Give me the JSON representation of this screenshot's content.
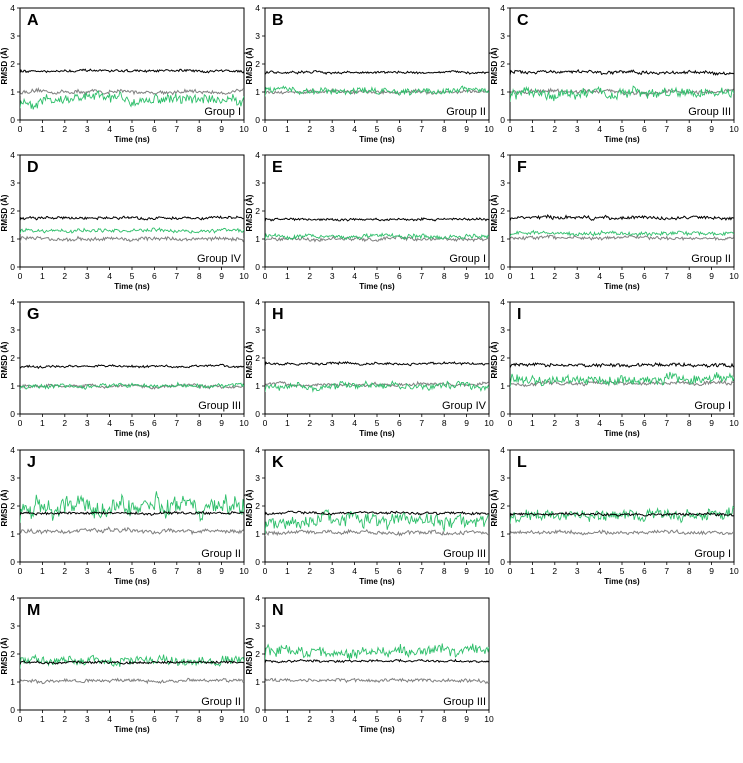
{
  "colors": {
    "black_series": "#000000",
    "gray_series": "#808080",
    "green_series": "#2fbf6b"
  },
  "chart_data": [
    {
      "panel": "A",
      "group_label": "Group I",
      "type": "line",
      "xlabel": "Time (ns)",
      "ylabel": "RMSD (Å)",
      "xlim": [
        0,
        10
      ],
      "ylim": [
        0,
        4
      ],
      "x_ticks": [
        0,
        1,
        2,
        3,
        4,
        5,
        6,
        7,
        8,
        9,
        10
      ],
      "y_ticks": [
        0,
        1,
        2,
        3,
        4
      ],
      "series": [
        {
          "color": "black",
          "mean": 1.75,
          "noise": 0.05
        },
        {
          "color": "gray",
          "mean": 1.0,
          "noise": 0.08
        },
        {
          "color": "green",
          "mean": 0.75,
          "noise": 0.22
        }
      ]
    },
    {
      "panel": "B",
      "group_label": "Group II",
      "type": "line",
      "xlabel": "Time (ns)",
      "ylabel": "RMSD (Å)",
      "xlim": [
        0,
        10
      ],
      "ylim": [
        0,
        4
      ],
      "x_ticks": [
        0,
        1,
        2,
        3,
        4,
        5,
        6,
        7,
        8,
        9,
        10
      ],
      "y_ticks": [
        0,
        1,
        2,
        3,
        4
      ],
      "series": [
        {
          "color": "black",
          "mean": 1.7,
          "noise": 0.05
        },
        {
          "color": "gray",
          "mean": 1.0,
          "noise": 0.07
        },
        {
          "color": "green",
          "mean": 1.05,
          "noise": 0.14
        }
      ]
    },
    {
      "panel": "C",
      "group_label": "Group III",
      "type": "line",
      "xlabel": "Time (ns)",
      "ylabel": "RMSD (Å)",
      "xlim": [
        0,
        10
      ],
      "ylim": [
        0,
        4
      ],
      "x_ticks": [
        0,
        1,
        2,
        3,
        4,
        5,
        6,
        7,
        8,
        9,
        10
      ],
      "y_ticks": [
        0,
        1,
        2,
        3,
        4
      ],
      "series": [
        {
          "color": "black",
          "mean": 1.7,
          "noise": 0.07
        },
        {
          "color": "gray",
          "mean": 1.0,
          "noise": 0.08
        },
        {
          "color": "green",
          "mean": 0.95,
          "noise": 0.2
        }
      ]
    },
    {
      "panel": "D",
      "group_label": "Group IV",
      "type": "line",
      "xlabel": "Time (ns)",
      "ylabel": "RMSD (Å)",
      "xlim": [
        0,
        10
      ],
      "ylim": [
        0,
        4
      ],
      "x_ticks": [
        0,
        1,
        2,
        3,
        4,
        5,
        6,
        7,
        8,
        9,
        10
      ],
      "y_ticks": [
        0,
        1,
        2,
        3,
        4
      ],
      "series": [
        {
          "color": "black",
          "mean": 1.75,
          "noise": 0.06
        },
        {
          "color": "gray",
          "mean": 1.0,
          "noise": 0.08
        },
        {
          "color": "green",
          "mean": 1.3,
          "noise": 0.08
        }
      ]
    },
    {
      "panel": "E",
      "group_label": "Group I",
      "type": "line",
      "xlabel": "Time (ns)",
      "ylabel": "RMSD (Å)",
      "xlim": [
        0,
        10
      ],
      "ylim": [
        0,
        4
      ],
      "x_ticks": [
        0,
        1,
        2,
        3,
        4,
        5,
        6,
        7,
        8,
        9,
        10
      ],
      "y_ticks": [
        0,
        1,
        2,
        3,
        4
      ],
      "series": [
        {
          "color": "black",
          "mean": 1.7,
          "noise": 0.05
        },
        {
          "color": "gray",
          "mean": 1.0,
          "noise": 0.07
        },
        {
          "color": "green",
          "mean": 1.1,
          "noise": 0.09
        }
      ]
    },
    {
      "panel": "F",
      "group_label": "Group II",
      "type": "line",
      "xlabel": "Time (ns)",
      "ylabel": "RMSD (Å)",
      "xlim": [
        0,
        10
      ],
      "ylim": [
        0,
        4
      ],
      "x_ticks": [
        0,
        1,
        2,
        3,
        4,
        5,
        6,
        7,
        8,
        9,
        10
      ],
      "y_ticks": [
        0,
        1,
        2,
        3,
        4
      ],
      "series": [
        {
          "color": "black",
          "mean": 1.75,
          "noise": 0.07
        },
        {
          "color": "gray",
          "mean": 1.05,
          "noise": 0.07
        },
        {
          "color": "green",
          "mean": 1.2,
          "noise": 0.08
        }
      ]
    },
    {
      "panel": "G",
      "group_label": "Group III",
      "type": "line",
      "xlabel": "Time (ns)",
      "ylabel": "RMSD (Å)",
      "xlim": [
        0,
        10
      ],
      "ylim": [
        0,
        4
      ],
      "x_ticks": [
        0,
        1,
        2,
        3,
        4,
        5,
        6,
        7,
        8,
        9,
        10
      ],
      "y_ticks": [
        0,
        1,
        2,
        3,
        4
      ],
      "series": [
        {
          "color": "black",
          "mean": 1.7,
          "noise": 0.05
        },
        {
          "color": "gray",
          "mean": 1.0,
          "noise": 0.07
        },
        {
          "color": "green",
          "mean": 1.0,
          "noise": 0.09
        }
      ]
    },
    {
      "panel": "H",
      "group_label": "Group IV",
      "type": "line",
      "xlabel": "Time (ns)",
      "ylabel": "RMSD (Å)",
      "xlim": [
        0,
        10
      ],
      "ylim": [
        0,
        4
      ],
      "x_ticks": [
        0,
        1,
        2,
        3,
        4,
        5,
        6,
        7,
        8,
        9,
        10
      ],
      "y_ticks": [
        0,
        1,
        2,
        3,
        4
      ],
      "series": [
        {
          "color": "black",
          "mean": 1.8,
          "noise": 0.05
        },
        {
          "color": "gray",
          "mean": 1.05,
          "noise": 0.07
        },
        {
          "color": "green",
          "mean": 1.0,
          "noise": 0.14
        }
      ]
    },
    {
      "panel": "I",
      "group_label": "Group I",
      "type": "line",
      "xlabel": "Time (ns)",
      "ylabel": "RMSD (Å)",
      "xlim": [
        0,
        10
      ],
      "ylim": [
        0,
        4
      ],
      "x_ticks": [
        0,
        1,
        2,
        3,
        4,
        5,
        6,
        7,
        8,
        9,
        10
      ],
      "y_ticks": [
        0,
        1,
        2,
        3,
        4
      ],
      "series": [
        {
          "color": "black",
          "mean": 1.75,
          "noise": 0.07
        },
        {
          "color": "gray",
          "mean": 1.1,
          "noise": 0.08
        },
        {
          "color": "green",
          "mean": 1.25,
          "noise": 0.2
        }
      ]
    },
    {
      "panel": "J",
      "group_label": "Group II",
      "type": "line",
      "xlabel": "Time (ns)",
      "ylabel": "RMSD (Å)",
      "xlim": [
        0,
        10
      ],
      "ylim": [
        0,
        4
      ],
      "x_ticks": [
        0,
        1,
        2,
        3,
        4,
        5,
        6,
        7,
        8,
        9,
        10
      ],
      "y_ticks": [
        0,
        1,
        2,
        3,
        4
      ],
      "series": [
        {
          "color": "black",
          "mean": 1.75,
          "noise": 0.05
        },
        {
          "color": "gray",
          "mean": 1.1,
          "noise": 0.08
        },
        {
          "color": "green",
          "mean": 2.0,
          "noise": 0.4
        }
      ]
    },
    {
      "panel": "K",
      "group_label": "Group III",
      "type": "line",
      "xlabel": "Time (ns)",
      "ylabel": "RMSD (Å)",
      "xlim": [
        0,
        10
      ],
      "ylim": [
        0,
        4
      ],
      "x_ticks": [
        0,
        1,
        2,
        3,
        4,
        5,
        6,
        7,
        8,
        9,
        10
      ],
      "y_ticks": [
        0,
        1,
        2,
        3,
        4
      ],
      "series": [
        {
          "color": "black",
          "mean": 1.75,
          "noise": 0.05
        },
        {
          "color": "gray",
          "mean": 1.05,
          "noise": 0.08
        },
        {
          "color": "green",
          "mean": 1.45,
          "noise": 0.3
        }
      ]
    },
    {
      "panel": "L",
      "group_label": "Group I",
      "type": "line",
      "xlabel": "Time (ns)",
      "ylabel": "RMSD (Å)",
      "xlim": [
        0,
        10
      ],
      "ylim": [
        0,
        4
      ],
      "x_ticks": [
        0,
        1,
        2,
        3,
        4,
        5,
        6,
        7,
        8,
        9,
        10
      ],
      "y_ticks": [
        0,
        1,
        2,
        3,
        4
      ],
      "series": [
        {
          "color": "black",
          "mean": 1.7,
          "noise": 0.05
        },
        {
          "color": "gray",
          "mean": 1.05,
          "noise": 0.07
        },
        {
          "color": "green",
          "mean": 1.7,
          "noise": 0.22
        }
      ]
    },
    {
      "panel": "M",
      "group_label": "Group II",
      "type": "line",
      "xlabel": "Time (ns)",
      "ylabel": "RMSD (Å)",
      "xlim": [
        0,
        10
      ],
      "ylim": [
        0,
        4
      ],
      "x_ticks": [
        0,
        1,
        2,
        3,
        4,
        5,
        6,
        7,
        8,
        9,
        10
      ],
      "y_ticks": [
        0,
        1,
        2,
        3,
        4
      ],
      "series": [
        {
          "color": "black",
          "mean": 1.7,
          "noise": 0.05
        },
        {
          "color": "gray",
          "mean": 1.05,
          "noise": 0.07
        },
        {
          "color": "green",
          "mean": 1.75,
          "noise": 0.18
        }
      ]
    },
    {
      "panel": "N",
      "group_label": "Group III",
      "type": "line",
      "xlabel": "Time (ns)",
      "ylabel": "RMSD (Å)",
      "xlim": [
        0,
        10
      ],
      "ylim": [
        0,
        4
      ],
      "x_ticks": [
        0,
        1,
        2,
        3,
        4,
        5,
        6,
        7,
        8,
        9,
        10
      ],
      "y_ticks": [
        0,
        1,
        2,
        3,
        4
      ],
      "series": [
        {
          "color": "black",
          "mean": 1.75,
          "noise": 0.05
        },
        {
          "color": "gray",
          "mean": 1.05,
          "noise": 0.07
        },
        {
          "color": "green",
          "mean": 2.1,
          "noise": 0.22
        }
      ]
    }
  ]
}
